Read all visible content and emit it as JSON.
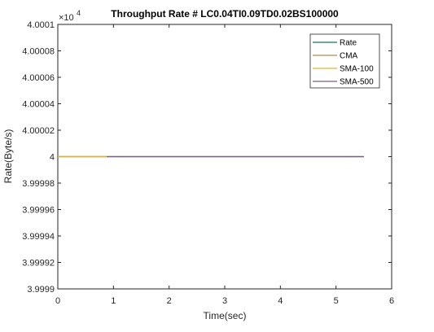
{
  "chart_data": {
    "type": "line",
    "title": "Throughput Rate # LC0.04TI0.09TD0.02BS100000",
    "xlabel": "Time(sec)",
    "ylabel": "Rate(Byte/s)",
    "xlim": [
      0,
      6
    ],
    "ylim": [
      39999,
      40001
    ],
    "xticks": [
      0,
      1,
      2,
      3,
      4,
      5,
      6
    ],
    "x_tick_labels": [
      "0",
      "1",
      "2",
      "3",
      "4",
      "5",
      "6"
    ],
    "yticks": [
      39999,
      39999.2,
      39999.4,
      39999.6,
      39999.8,
      40000,
      40000.2,
      40000.4,
      40000.6,
      40000.8,
      40001
    ],
    "y_tick_labels": [
      "3.9999",
      "3.99992",
      "3.99994",
      "3.99996",
      "3.99998",
      "4",
      "4.00002",
      "4.00004",
      "4.00006",
      "4.00008",
      "4.0001"
    ],
    "y_exponent_base": "×10",
    "y_exponent_power": "4",
    "grid": false,
    "legend_position": "top-right",
    "series": [
      {
        "name": "Rate",
        "color": "#0b7a5a",
        "x": [
          0,
          5.5
        ],
        "y": [
          40000,
          40000
        ]
      },
      {
        "name": "CMA",
        "color": "#b8864a",
        "x": [
          0,
          5.5
        ],
        "y": [
          40000,
          40000
        ]
      },
      {
        "name": "SMA-100",
        "color": "#edb120",
        "x": [
          0,
          0.88
        ],
        "y": [
          40000,
          40000
        ]
      },
      {
        "name": "SMA-500",
        "color": "#7e5a8e",
        "x": [
          0.88,
          5.5
        ],
        "y": [
          40000,
          40000
        ]
      }
    ]
  }
}
